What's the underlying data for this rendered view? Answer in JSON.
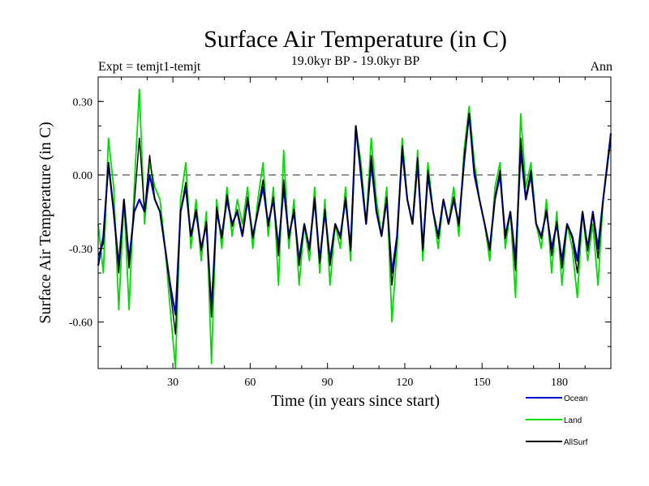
{
  "chart_data": {
    "type": "line",
    "title": "Surface Air Temperature (in C)",
    "subtitle": "19.0kyr BP - 19.0kyr BP",
    "left_label": "Expt = temjt1-temjt",
    "right_label": "Ann",
    "xlabel": "Time (in years since start)",
    "ylabel": "Surface Air Temperature (in C)",
    "xlim": [
      1,
      200
    ],
    "ylim": [
      -0.79,
      0.4
    ],
    "xticks": [
      30,
      60,
      90,
      120,
      150,
      180
    ],
    "yticks": [
      {
        "value": 0.3,
        "label": "0.30"
      },
      {
        "value": 0.0,
        "label": "0.00"
      },
      {
        "value": -0.3,
        "label": "-0.30"
      },
      {
        "value": -0.6,
        "label": "-0.60"
      }
    ],
    "zero_line": "dashed",
    "legend_position": "bottom-right",
    "series": [
      {
        "name": "Land",
        "color": "#00dd00",
        "x": [
          1,
          3,
          5,
          7,
          9,
          11,
          13,
          15,
          17,
          19,
          21,
          23,
          25,
          27,
          29,
          31,
          33,
          35,
          37,
          39,
          41,
          43,
          45,
          47,
          49,
          51,
          53,
          55,
          57,
          59,
          61,
          63,
          65,
          67,
          69,
          71,
          73,
          75,
          77,
          79,
          81,
          83,
          85,
          87,
          89,
          91,
          93,
          95,
          97,
          99,
          101,
          103,
          105,
          107,
          109,
          111,
          113,
          115,
          117,
          119,
          121,
          123,
          125,
          127,
          129,
          131,
          133,
          135,
          137,
          139,
          141,
          143,
          145,
          147,
          149,
          151,
          153,
          155,
          157,
          159,
          161,
          163,
          165,
          167,
          169,
          171,
          173,
          175,
          177,
          179,
          181,
          183,
          185,
          187,
          189,
          191,
          193,
          195,
          197,
          200
        ],
        "y": [
          -0.2,
          -0.4,
          0.15,
          -0.05,
          -0.55,
          -0.1,
          -0.55,
          -0.05,
          0.35,
          -0.2,
          0.05,
          -0.05,
          -0.1,
          -0.3,
          -0.55,
          -0.79,
          -0.1,
          0.05,
          -0.3,
          -0.1,
          -0.35,
          -0.15,
          -0.77,
          -0.1,
          -0.3,
          -0.05,
          -0.25,
          -0.1,
          -0.2,
          -0.05,
          -0.3,
          -0.1,
          0.05,
          -0.25,
          -0.05,
          -0.45,
          0.1,
          -0.3,
          -0.1,
          -0.45,
          -0.2,
          -0.35,
          -0.05,
          -0.4,
          -0.1,
          -0.45,
          -0.2,
          -0.3,
          -0.05,
          -0.35,
          0.2,
          0.05,
          -0.2,
          0.15,
          -0.1,
          -0.25,
          -0.05,
          -0.6,
          -0.3,
          0.15,
          -0.1,
          -0.2,
          0.1,
          -0.35,
          0.05,
          -0.15,
          -0.3,
          -0.1,
          -0.2,
          -0.05,
          -0.25,
          0.1,
          0.28,
          0.05,
          -0.1,
          -0.2,
          -0.35,
          -0.05,
          0.05,
          -0.3,
          -0.15,
          -0.5,
          0.25,
          -0.05,
          0.05,
          -0.2,
          -0.3,
          -0.1,
          -0.4,
          -0.15,
          -0.45,
          -0.2,
          -0.3,
          -0.5,
          -0.15,
          -0.35,
          -0.2,
          -0.45,
          -0.1,
          0.15
        ]
      },
      {
        "name": "Ocean",
        "color": "#0000cc",
        "x": [
          1,
          3,
          5,
          7,
          9,
          11,
          13,
          15,
          17,
          19,
          21,
          23,
          25,
          27,
          29,
          31,
          33,
          35,
          37,
          39,
          41,
          43,
          45,
          47,
          49,
          51,
          53,
          55,
          57,
          59,
          61,
          63,
          65,
          67,
          69,
          71,
          73,
          75,
          77,
          79,
          81,
          83,
          85,
          87,
          89,
          91,
          93,
          95,
          97,
          99,
          101,
          103,
          105,
          107,
          109,
          111,
          113,
          115,
          117,
          119,
          121,
          123,
          125,
          127,
          129,
          131,
          133,
          135,
          137,
          139,
          141,
          143,
          145,
          147,
          149,
          151,
          153,
          155,
          157,
          159,
          161,
          163,
          165,
          167,
          169,
          171,
          173,
          175,
          177,
          179,
          181,
          183,
          185,
          187,
          189,
          191,
          193,
          195,
          197,
          200
        ],
        "y": [
          -0.37,
          -0.25,
          0.05,
          -0.15,
          -0.37,
          -0.1,
          -0.35,
          -0.15,
          -0.1,
          -0.15,
          0.0,
          -0.1,
          -0.15,
          -0.3,
          -0.45,
          -0.57,
          -0.15,
          -0.05,
          -0.25,
          -0.15,
          -0.3,
          -0.2,
          -0.55,
          -0.15,
          -0.25,
          -0.1,
          -0.2,
          -0.15,
          -0.25,
          -0.1,
          -0.25,
          -0.15,
          -0.05,
          -0.2,
          -0.1,
          -0.3,
          -0.05,
          -0.25,
          -0.15,
          -0.35,
          -0.2,
          -0.3,
          -0.1,
          -0.35,
          -0.15,
          -0.35,
          -0.2,
          -0.25,
          -0.1,
          -0.3,
          0.2,
          0.0,
          -0.2,
          0.05,
          -0.15,
          -0.25,
          -0.1,
          -0.4,
          -0.25,
          0.1,
          -0.1,
          -0.2,
          0.05,
          -0.3,
          0.0,
          -0.15,
          -0.25,
          -0.1,
          -0.2,
          -0.1,
          -0.2,
          0.05,
          0.25,
          0.0,
          -0.1,
          -0.2,
          -0.3,
          -0.1,
          0.0,
          -0.25,
          -0.15,
          -0.35,
          0.1,
          -0.1,
          0.0,
          -0.2,
          -0.25,
          -0.15,
          -0.3,
          -0.2,
          -0.35,
          -0.2,
          -0.25,
          -0.35,
          -0.15,
          -0.3,
          -0.15,
          -0.3,
          -0.1,
          0.17
        ]
      },
      {
        "name": "AllSurf",
        "color": "#000000",
        "x": [
          1,
          3,
          5,
          7,
          9,
          11,
          13,
          15,
          17,
          19,
          21,
          23,
          25,
          27,
          29,
          31,
          33,
          35,
          37,
          39,
          41,
          43,
          45,
          47,
          49,
          51,
          53,
          55,
          57,
          59,
          61,
          63,
          65,
          67,
          69,
          71,
          73,
          75,
          77,
          79,
          81,
          83,
          85,
          87,
          89,
          91,
          93,
          95,
          97,
          99,
          101,
          103,
          105,
          107,
          109,
          111,
          113,
          115,
          117,
          119,
          121,
          123,
          125,
          127,
          129,
          131,
          133,
          135,
          137,
          139,
          141,
          143,
          145,
          147,
          149,
          151,
          153,
          155,
          157,
          159,
          161,
          163,
          165,
          167,
          169,
          171,
          173,
          175,
          177,
          179,
          181,
          183,
          185,
          187,
          189,
          191,
          193,
          195,
          197,
          200
        ],
        "y": [
          -0.33,
          -0.28,
          0.05,
          -0.15,
          -0.4,
          -0.1,
          -0.38,
          -0.12,
          0.15,
          -0.15,
          0.08,
          -0.1,
          -0.15,
          -0.3,
          -0.47,
          -0.65,
          -0.15,
          -0.03,
          -0.25,
          -0.14,
          -0.31,
          -0.19,
          -0.58,
          -0.13,
          -0.26,
          -0.08,
          -0.21,
          -0.14,
          -0.24,
          -0.09,
          -0.26,
          -0.14,
          -0.02,
          -0.21,
          -0.09,
          -0.33,
          -0.02,
          -0.26,
          -0.14,
          -0.37,
          -0.2,
          -0.31,
          -0.09,
          -0.36,
          -0.14,
          -0.37,
          -0.2,
          -0.26,
          -0.09,
          -0.31,
          0.2,
          0.02,
          -0.2,
          0.08,
          -0.14,
          -0.25,
          -0.09,
          -0.45,
          -0.26,
          0.12,
          -0.1,
          -0.2,
          0.07,
          -0.31,
          0.02,
          -0.15,
          -0.26,
          -0.1,
          -0.2,
          -0.09,
          -0.21,
          0.07,
          0.25,
          0.02,
          -0.1,
          -0.2,
          -0.31,
          -0.09,
          0.02,
          -0.26,
          -0.15,
          -0.39,
          0.15,
          -0.09,
          0.02,
          -0.2,
          -0.26,
          -0.14,
          -0.33,
          -0.19,
          -0.38,
          -0.2,
          -0.26,
          -0.4,
          -0.15,
          -0.31,
          -0.16,
          -0.34,
          -0.1,
          0.15
        ]
      }
    ]
  }
}
